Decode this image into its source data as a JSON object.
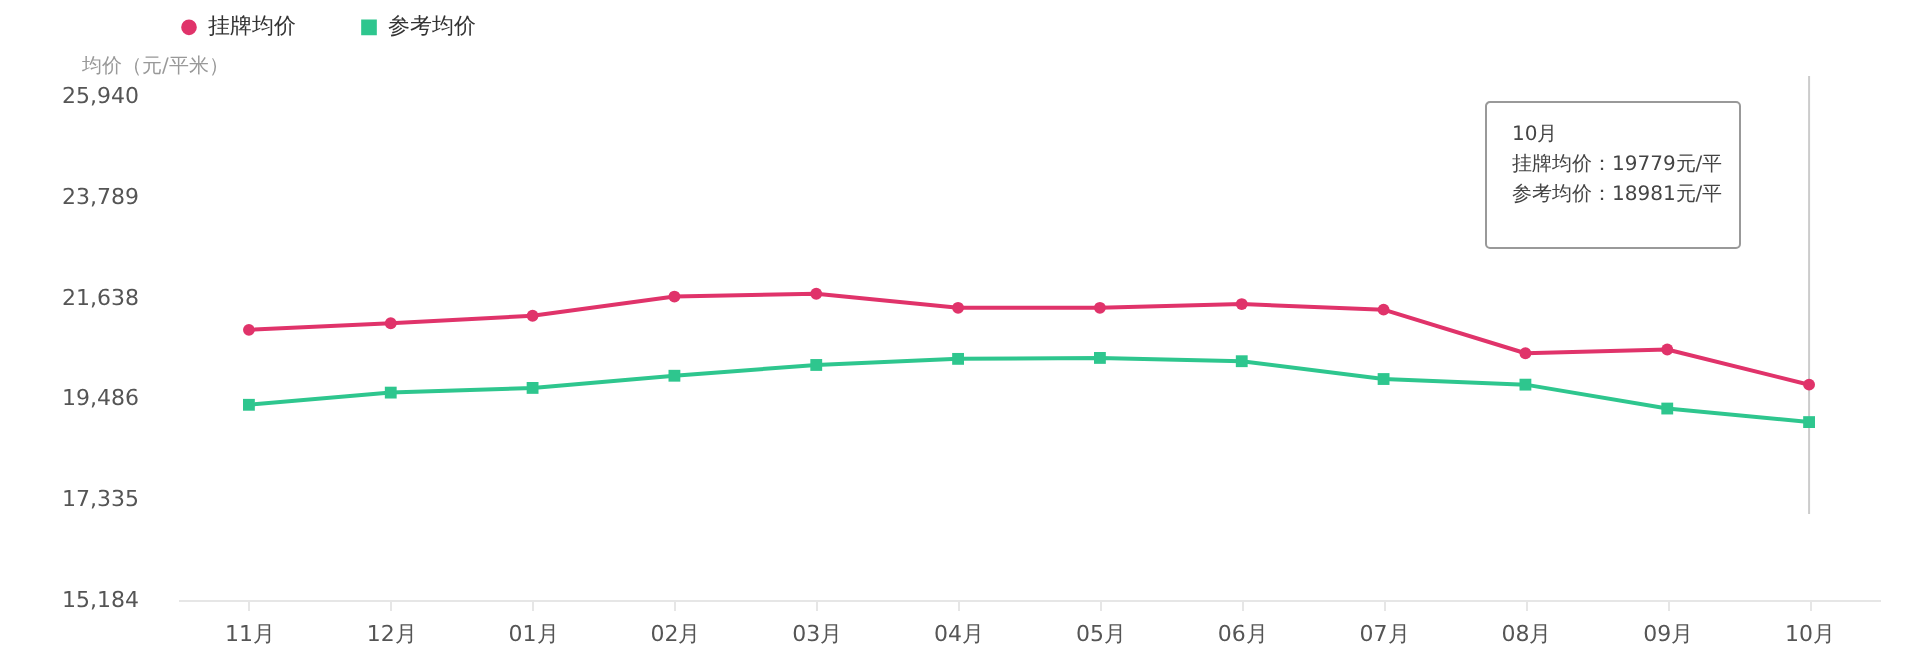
{
  "chart_data": {
    "type": "line",
    "ylabel": "均价（元/平米）",
    "categories": [
      "11月",
      "12月",
      "01月",
      "02月",
      "03月",
      "04月",
      "05月",
      "06月",
      "07月",
      "08月",
      "09月",
      "10月"
    ],
    "series": [
      {
        "name": "挂牌均价",
        "color": "#e0336a",
        "marker": "circle",
        "values": [
          20950,
          21090,
          21250,
          21660,
          21720,
          21420,
          21420,
          21500,
          21380,
          20450,
          20530,
          19779
        ]
      },
      {
        "name": "参考均价",
        "color": "#2ec68e",
        "marker": "square",
        "values": [
          19350,
          19610,
          19710,
          19970,
          20200,
          20330,
          20350,
          20280,
          19900,
          19780,
          19270,
          18981
        ]
      }
    ],
    "ylim": [
      15184,
      25940
    ],
    "yticks": [
      {
        "value": 15184,
        "label": "15,184"
      },
      {
        "value": 17335,
        "label": "17,335"
      },
      {
        "value": 19486,
        "label": "19,486"
      },
      {
        "value": 21638,
        "label": "21,638"
      },
      {
        "value": 23789,
        "label": "23,789"
      },
      {
        "value": 25940,
        "label": "25,940"
      }
    ],
    "grid": false,
    "legend": "top left",
    "line_style": "solid",
    "ref_lines": [
      {
        "axis": "x",
        "value": "10月",
        "color": "#cccccc"
      }
    ],
    "annotations": [
      "10月",
      "挂牌均价：19779元/平",
      "参考均价：18981元/平"
    ]
  }
}
